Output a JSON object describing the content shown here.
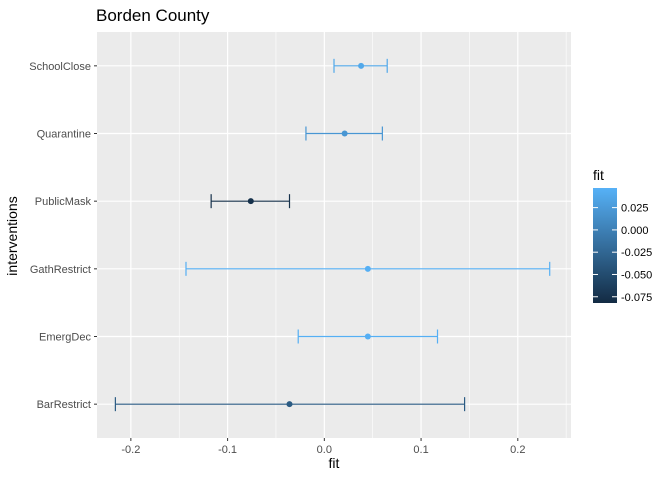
{
  "chart_data": {
    "type": "errorbar",
    "title": "Borden County",
    "xlabel": "fit",
    "ylabel": "interventions",
    "xlim": [
      -0.235,
      0.255
    ],
    "x_ticks": [
      -0.2,
      -0.1,
      0.0,
      0.1,
      0.2
    ],
    "x_tick_labels": [
      "-0.2",
      "-0.1",
      "0.0",
      "0.1",
      "0.2"
    ],
    "grid": true,
    "categories": [
      "SchoolClose",
      "Quarantine",
      "PublicMask",
      "GathRestrict",
      "EmergDec",
      "BarRestrict"
    ],
    "series": [
      {
        "category": "SchoolClose",
        "fit": 0.038,
        "lower": 0.01,
        "upper": 0.065
      },
      {
        "category": "Quarantine",
        "fit": 0.021,
        "lower": -0.019,
        "upper": 0.06
      },
      {
        "category": "PublicMask",
        "fit": -0.076,
        "lower": -0.117,
        "upper": -0.036
      },
      {
        "category": "GathRestrict",
        "fit": 0.045,
        "lower": -0.143,
        "upper": 0.233
      },
      {
        "category": "EmergDec",
        "fit": 0.045,
        "lower": -0.027,
        "upper": 0.117
      },
      {
        "category": "BarRestrict",
        "fit": -0.036,
        "lower": -0.216,
        "upper": 0.145
      }
    ],
    "legend": {
      "title": "fit",
      "placement": "right",
      "range": [
        -0.082,
        0.047
      ],
      "ticks": [
        0.025,
        0.0,
        -0.025,
        -0.05,
        -0.075
      ],
      "tick_labels": [
        "0.025",
        "0.000",
        "-0.025",
        "-0.050",
        "-0.075"
      ],
      "color_low": "#132B43",
      "color_high": "#56B1F7"
    },
    "colors": {
      "panel_background": "#EBEBEB",
      "grid_major": "#FFFFFF"
    }
  }
}
